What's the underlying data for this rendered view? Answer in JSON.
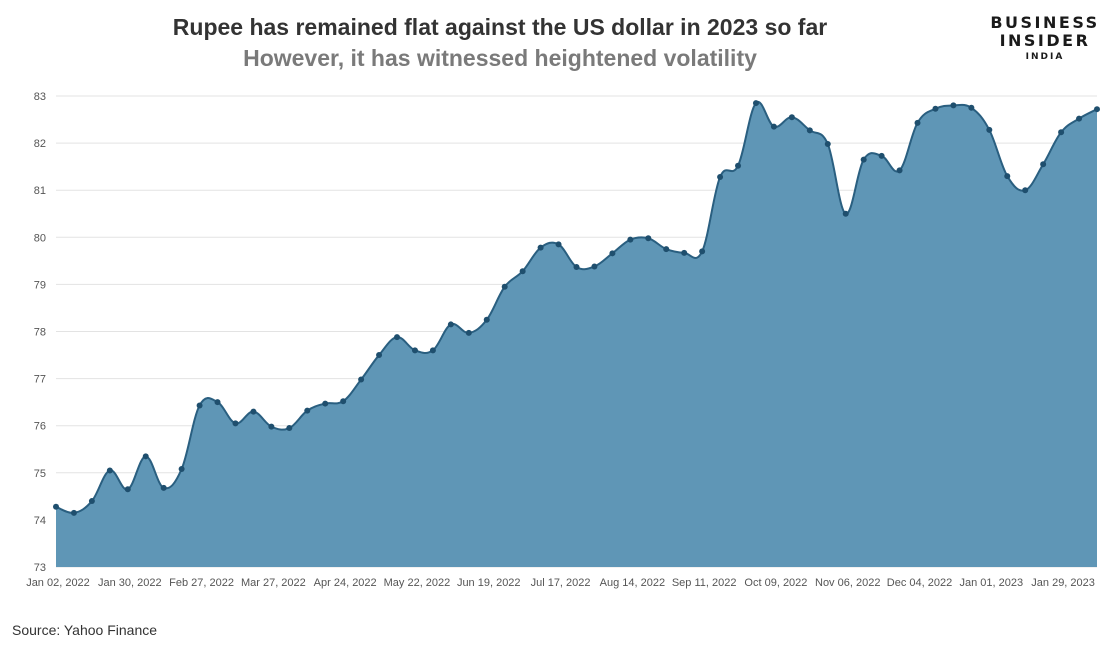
{
  "title": "Rupee has remained flat against the US dollar in 2023 so far",
  "subtitle": "However, it has witnessed heightened volatility",
  "logo": {
    "line1": "BUSINESS",
    "line2": "INSIDER",
    "line3": "INDIA"
  },
  "source": "Source: Yahoo Finance",
  "colors": {
    "area_fill": "#5f96b6",
    "line": "#2a5f80",
    "marker": "#1f4f6e",
    "grid": "#e3e3e3",
    "axis_text": "#555555"
  },
  "chart_data": {
    "type": "area",
    "title": "Rupee has remained flat against the US dollar in 2023 so far",
    "subtitle": "However, it has witnessed heightened volatility",
    "xlabel": "",
    "ylabel": "",
    "ylim": [
      73,
      83
    ],
    "yticks": [
      73,
      74,
      75,
      76,
      77,
      78,
      79,
      80,
      81,
      82,
      83
    ],
    "xticks": [
      "Jan 02, 2022",
      "Jan 30, 2022",
      "Feb 27, 2022",
      "Mar 27, 2022",
      "Apr 24, 2022",
      "May 22, 2022",
      "Jun 19, 2022",
      "Jul 17, 2022",
      "Aug 14, 2022",
      "Sep 11, 2022",
      "Oct 09, 2022",
      "Nov 06, 2022",
      "Dec 04, 2022",
      "Jan 01, 2023",
      "Jan 29, 2023"
    ],
    "grid": true,
    "series": [
      {
        "x": [
          "Jan 02, 2022",
          "Jan 09, 2022",
          "Jan 16, 2022",
          "Jan 23, 2022",
          "Jan 30, 2022",
          "Feb 06, 2022",
          "Feb 13, 2022",
          "Feb 20, 2022",
          "Feb 27, 2022",
          "Mar 06, 2022",
          "Mar 13, 2022",
          "Mar 20, 2022",
          "Mar 27, 2022",
          "Apr 03, 2022",
          "Apr 10, 2022",
          "Apr 17, 2022",
          "Apr 24, 2022",
          "May 01, 2022",
          "May 08, 2022",
          "May 15, 2022",
          "May 22, 2022",
          "May 29, 2022",
          "Jun 05, 2022",
          "Jun 12, 2022",
          "Jun 19, 2022",
          "Jun 26, 2022",
          "Jul 03, 2022",
          "Jul 10, 2022",
          "Jul 17, 2022",
          "Jul 24, 2022",
          "Jul 31, 2022",
          "Aug 07, 2022",
          "Aug 14, 2022",
          "Aug 21, 2022",
          "Aug 28, 2022",
          "Sep 04, 2022",
          "Sep 11, 2022",
          "Sep 18, 2022",
          "Sep 25, 2022",
          "Oct 02, 2022",
          "Oct 09, 2022",
          "Oct 16, 2022",
          "Oct 23, 2022",
          "Oct 30, 2022",
          "Nov 06, 2022",
          "Nov 13, 2022",
          "Nov 20, 2022",
          "Nov 27, 2022",
          "Dec 04, 2022",
          "Dec 11, 2022",
          "Dec 18, 2022",
          "Dec 25, 2022",
          "Jan 01, 2023",
          "Jan 08, 2023",
          "Jan 15, 2023",
          "Jan 22, 2023",
          "Jan 29, 2023",
          "Feb 05, 2023",
          "Feb 12, 2023"
        ],
        "values": [
          74.28,
          74.15,
          74.4,
          75.05,
          74.65,
          75.35,
          74.68,
          75.08,
          76.43,
          76.5,
          76.05,
          76.3,
          75.98,
          75.95,
          76.32,
          76.47,
          76.52,
          76.98,
          77.5,
          77.88,
          77.6,
          77.6,
          78.15,
          77.97,
          78.25,
          78.95,
          79.28,
          79.78,
          79.85,
          79.37,
          79.38,
          79.66,
          79.95,
          79.98,
          79.75,
          79.67,
          79.7,
          81.28,
          81.52,
          82.85,
          82.35,
          82.55,
          82.27,
          81.98,
          80.5,
          81.65,
          81.73,
          81.42,
          82.43,
          82.73,
          82.8,
          82.75,
          82.28,
          81.3,
          81.0,
          81.55,
          82.23,
          82.52,
          82.72
        ]
      }
    ]
  }
}
